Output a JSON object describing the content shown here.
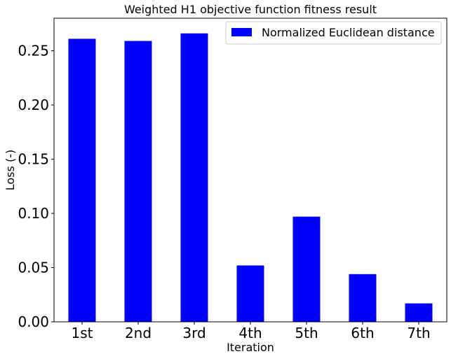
{
  "chart_data": {
    "type": "bar",
    "title": "Weighted H1 objective function fitness result",
    "xlabel": "Iteration",
    "ylabel": "Loss (-)",
    "categories": [
      "1st",
      "2nd",
      "3rd",
      "4th",
      "5th",
      "6th",
      "7th"
    ],
    "series": [
      {
        "name": "Normalized Euclidean distance",
        "values": [
          0.261,
          0.259,
          0.266,
          0.052,
          0.097,
          0.044,
          0.017
        ],
        "color": "#0000ff"
      }
    ],
    "ylim": [
      0,
      0.28
    ],
    "yticks": [
      0.0,
      0.05,
      0.1,
      0.15,
      0.2,
      0.25
    ],
    "ytick_labels": [
      "0.00",
      "0.05",
      "0.10",
      "0.15",
      "0.20",
      "0.25"
    ],
    "legend_position": "top-right",
    "grid": false
  }
}
